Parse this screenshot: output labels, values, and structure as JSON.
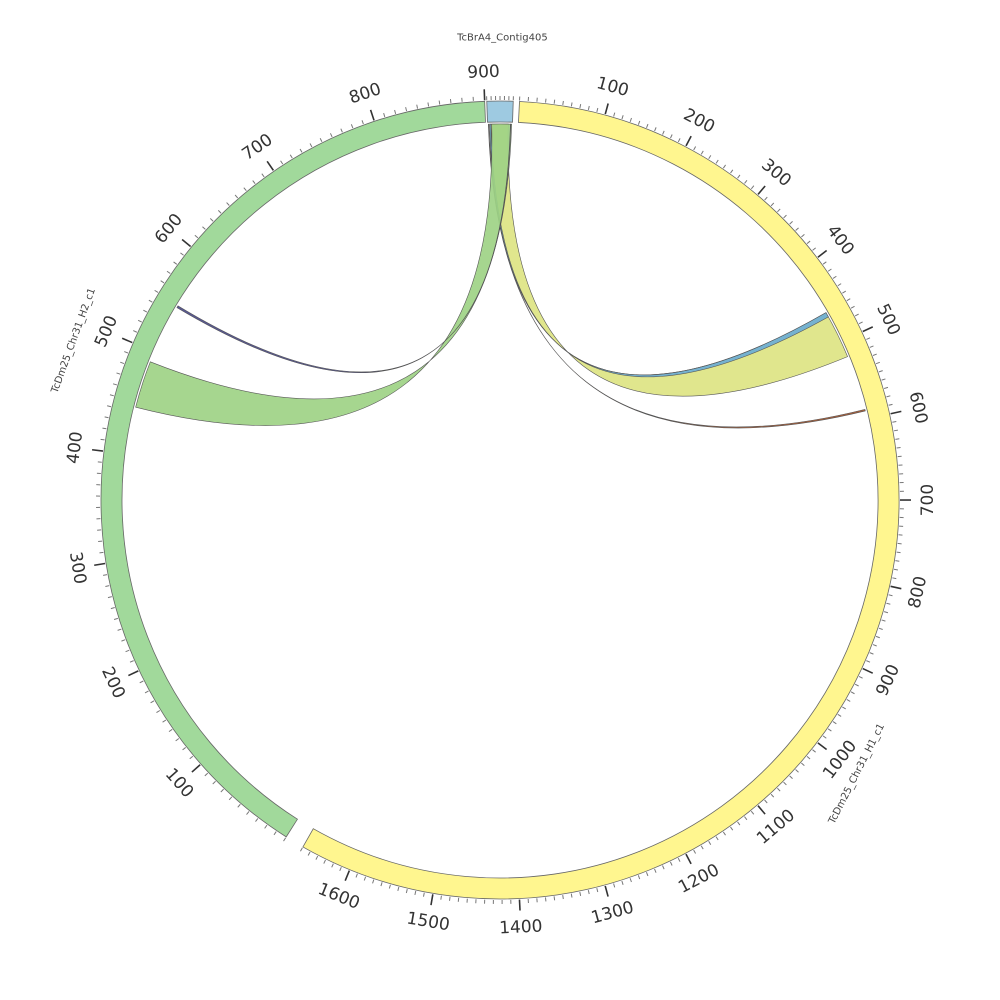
{
  "diagram": {
    "type": "circos",
    "tick_unit": 10
  },
  "chromosomes": [
    {
      "id": "contig",
      "name": "TcBrA4_Contig405",
      "length": 60,
      "color": "#9ecae1",
      "label_rotation": "horizontal",
      "major_ticks": []
    },
    {
      "id": "h1",
      "name": "TcDm25_Chr31_H1_c1",
      "length": 1660,
      "color": "#fff68f",
      "major_ticks": [
        "100",
        "200",
        "300",
        "400",
        "500",
        "600",
        "700",
        "800",
        "900",
        "1000",
        "1100",
        "1200",
        "1300",
        "1400",
        "1500",
        "1600"
      ]
    },
    {
      "id": "h2",
      "name": "TcDm25_Chr31_H2_c1",
      "length": 900,
      "color": "#a1d99b",
      "major_ticks": [
        "100",
        "200",
        "300",
        "400",
        "500",
        "600",
        "700",
        "800",
        "900"
      ]
    }
  ],
  "links": [
    {
      "id": "link-contig-h1-main",
      "from": "contig",
      "from_range": [
        5,
        50
      ],
      "to": "h1",
      "to_range": [
        460,
        520
      ],
      "color": "#dde483"
    },
    {
      "id": "link-contig-h1-thin",
      "from": "contig",
      "from_range": [
        5,
        8
      ],
      "to": "h1",
      "to_range": [
        460,
        466
      ],
      "color": "#6baed6"
    },
    {
      "id": "link-contig-h1-line",
      "from": "contig",
      "from_range": [
        2,
        3
      ],
      "to": "h1",
      "to_range": [
        588,
        590
      ],
      "color": "#a0522d"
    },
    {
      "id": "link-contig-h2-main",
      "from": "contig",
      "from_range": [
        10,
        58
      ],
      "to": "h2",
      "to_range": [
        445,
        490
      ],
      "color": "#9ed386"
    },
    {
      "id": "link-contig-h2-line",
      "from": "contig",
      "from_range": [
        55,
        56
      ],
      "to": "h2",
      "to_range": [
        547,
        549
      ],
      "color": "#4a4a8a"
    }
  ]
}
